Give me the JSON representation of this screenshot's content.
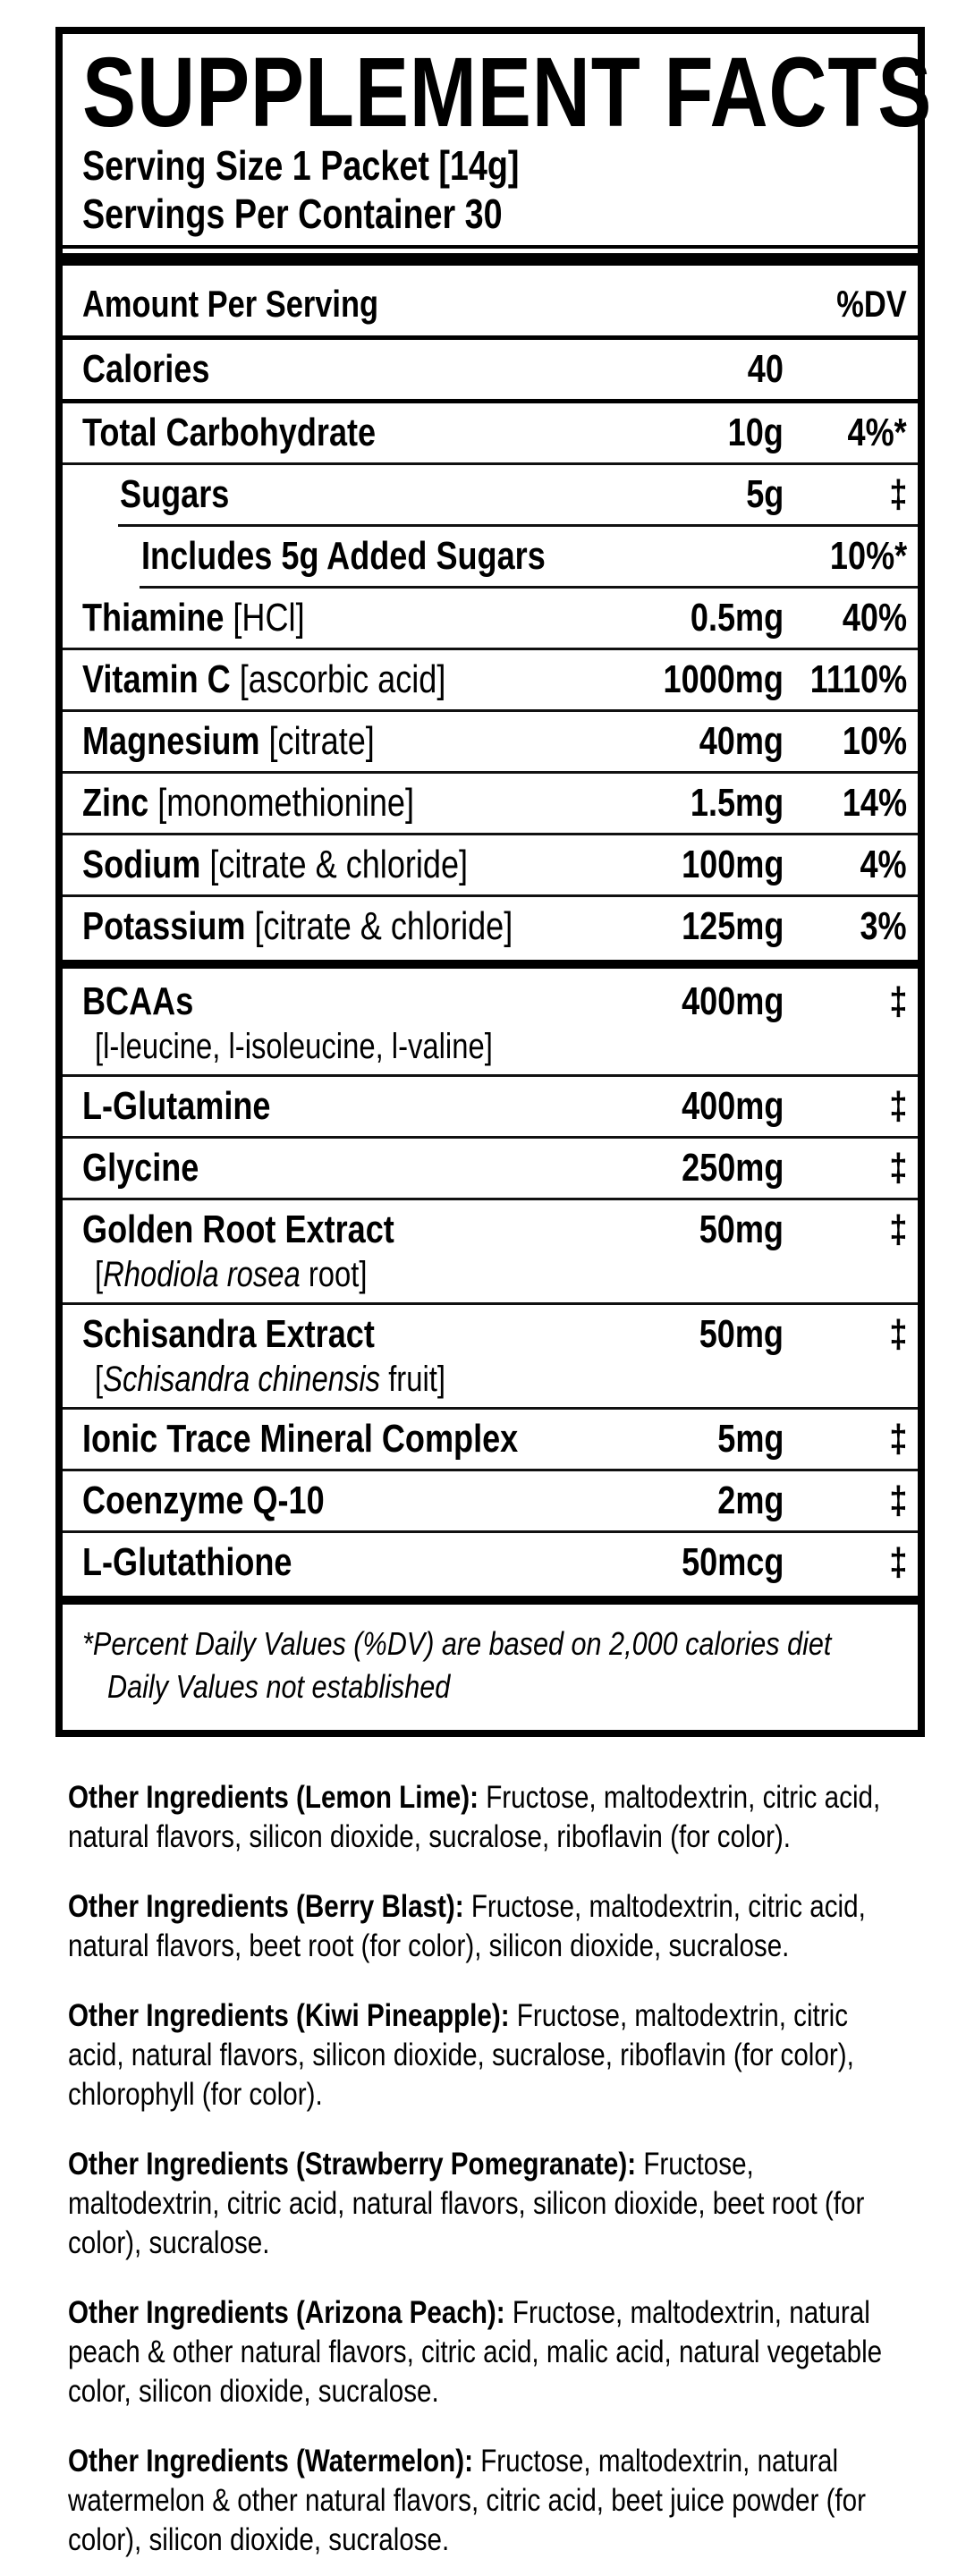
{
  "panel": {
    "title": "SUPPLEMENT FACTS",
    "serving_size": "Serving Size 1 Packet [14g]",
    "servings_per_container": "Servings Per Container 30",
    "columns": {
      "amount_header": "Amount Per Serving",
      "dv_header": "%DV"
    },
    "rows": [
      {
        "name": "Calories",
        "amt": "40",
        "dv": "",
        "sep": "med"
      },
      {
        "name": "Total Carbohydrate",
        "amt": "10g",
        "dv": "4%*",
        "sep": "thin"
      },
      {
        "name": "Sugars",
        "indent": 1,
        "amt": "5g",
        "dv": "‡",
        "sep": "thin",
        "sep_indent": 1
      },
      {
        "name": "Includes 5g Added Sugars",
        "indent": 2,
        "amt": "",
        "dv": "10%*",
        "sep": "thin",
        "sep_indent": 2
      },
      {
        "name": "Thiamine",
        "detail": "[HCl]",
        "amt": "0.5mg",
        "dv": "40%",
        "sep": "thin"
      },
      {
        "name": "Vitamin C",
        "detail": "[ascorbic acid]",
        "amt": "1000mg",
        "dv": "1110%",
        "sep": "thin"
      },
      {
        "name": "Magnesium",
        "detail": "[citrate]",
        "amt": "40mg",
        "dv": "10%",
        "sep": "thin"
      },
      {
        "name": "Zinc",
        "detail": "[monomethionine]",
        "amt": "1.5mg",
        "dv": "14%",
        "sep": "thin"
      },
      {
        "name": "Sodium",
        "detail": "[citrate & chloride]",
        "amt": "100mg",
        "dv": "4%",
        "sep": "thin"
      },
      {
        "name": "Potassium",
        "detail": "[citrate & chloride]",
        "amt": "125mg",
        "dv": "3%",
        "sep": "thick"
      },
      {
        "name": "BCAAs",
        "sub": [
          {
            "t": "[l-leucine, l-isoleucine, l-valine]",
            "i": false
          }
        ],
        "amt": "400mg",
        "dv": "‡",
        "sep": "thin"
      },
      {
        "name": "L-Glutamine",
        "amt": "400mg",
        "dv": "‡",
        "sep": "thin"
      },
      {
        "name": "Glycine",
        "amt": "250mg",
        "dv": "‡",
        "sep": "thin"
      },
      {
        "name": "Golden Root Extract",
        "sub": [
          {
            "t": "[",
            "i": false
          },
          {
            "t": "Rhodiola rosea",
            "i": true
          },
          {
            "t": " root]",
            "i": false
          }
        ],
        "amt": "50mg",
        "dv": "‡",
        "sep": "thin"
      },
      {
        "name": "Schisandra Extract",
        "sub": [
          {
            "t": "[",
            "i": false
          },
          {
            "t": "Schisandra chinensis",
            "i": true
          },
          {
            "t": " fruit]",
            "i": false
          }
        ],
        "amt": "50mg",
        "dv": "‡",
        "sep": "thin"
      },
      {
        "name": "Ionic Trace Mineral Complex",
        "amt": "5mg",
        "dv": "‡",
        "sep": "thin"
      },
      {
        "name": "Coenzyme Q-10",
        "amt": "2mg",
        "dv": "‡",
        "sep": "thin"
      },
      {
        "name": "L-Glutathione",
        "amt": "50mcg",
        "dv": "‡",
        "sep": "thick"
      }
    ],
    "footnote": {
      "line1": "*Percent Daily Values (%DV) are based on 2,000 calories diet",
      "line2": "Daily Values not established"
    }
  },
  "other_ingredients": [
    {
      "label": "Other Ingredients (Lemon Lime):",
      "text": " Fructose, maltodextrin, citric acid, natural flavors, silicon dioxide, sucralose, riboflavin (for color)."
    },
    {
      "label": "Other Ingredients (Berry Blast):",
      "text": " Fructose, maltodextrin, citric acid, natural flavors, beet root (for color), silicon dioxide, sucralose."
    },
    {
      "label": "Other Ingredients (Kiwi Pineapple):",
      "text": " Fructose, maltodextrin, citric acid, natural flavors, silicon dioxide, sucralose, riboflavin (for color), chlorophyll (for color)."
    },
    {
      "label": "Other Ingredients (Strawberry Pomegranate):",
      "text": " Fructose, maltodextrin, citric acid, natural flavors, silicon dioxide, beet root (for color), sucralose."
    },
    {
      "label": "Other Ingredients (Arizona Peach):",
      "text": " Fructose, maltodextrin, natural peach & other natural flavors, citric acid, malic acid, natural vegetable color, silicon dioxide, sucralose."
    },
    {
      "label": "Other Ingredients (Watermelon):",
      "text": " Fructose, maltodextrin, natural watermelon & other natural flavors, citric acid, beet juice powder (for color), silicon dioxide, sucralose."
    }
  ],
  "colors": {
    "ink": "#000000",
    "paper": "#ffffff"
  }
}
